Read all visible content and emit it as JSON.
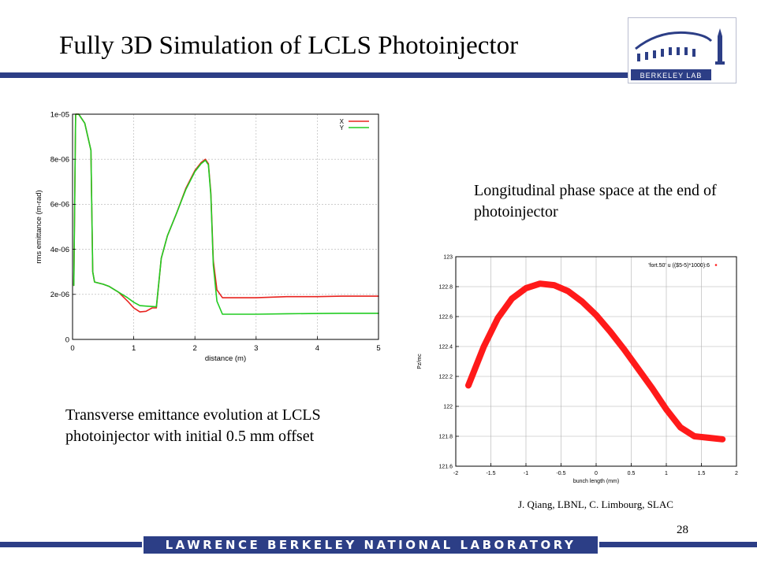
{
  "slide": {
    "title": "Fully 3D Simulation of LCLS Photoinjector",
    "caption_longitudinal": "Longitudinal phase space at the end of photoinjector",
    "caption_transverse": "Transverse emittance evolution at LCLS photoinjector with initial 0.5 mm offset",
    "credit": "J. Qiang, LBNL, C. Limbourg, SLAC",
    "page_number": "28",
    "footer": "LAWRENCE BERKELEY NATIONAL LABORATORY",
    "logo_text": "BERKELEY LAB",
    "colors": {
      "brand_blue": "#2c3e86"
    }
  },
  "chart_data": [
    {
      "type": "line",
      "xlabel": "distance (m)",
      "ylabel": "rms emittance (m-rad)",
      "xlim": [
        0,
        5
      ],
      "ylim": [
        0,
        1e-05
      ],
      "x_ticks": [
        "0",
        "1",
        "2",
        "3",
        "4",
        "5"
      ],
      "y_ticks": [
        "0",
        "2e-06",
        "4e-06",
        "6e-06",
        "8e-06",
        "1e-05"
      ],
      "grid": true,
      "legend_position": "top-right",
      "series": [
        {
          "name": "X",
          "color": "#e8231f",
          "points": [
            [
              0.02,
              2.4e-06
            ],
            [
              0.05,
              1e-05
            ],
            [
              0.1,
              1e-05
            ],
            [
              0.2,
              9.6e-06
            ],
            [
              0.3,
              8.4e-06
            ],
            [
              0.33,
              3e-06
            ],
            [
              0.36,
              2.55e-06
            ],
            [
              0.5,
              2.45e-06
            ],
            [
              0.6,
              2.35e-06
            ],
            [
              0.75,
              2.1e-06
            ],
            [
              0.9,
              1.7e-06
            ],
            [
              1.0,
              1.4e-06
            ],
            [
              1.1,
              1.22e-06
            ],
            [
              1.2,
              1.25e-06
            ],
            [
              1.3,
              1.4e-06
            ],
            [
              1.37,
              1.4e-06
            ],
            [
              1.45,
              3.6e-06
            ],
            [
              1.55,
              4.6e-06
            ],
            [
              1.7,
              5.6e-06
            ],
            [
              1.85,
              6.7e-06
            ],
            [
              2.0,
              7.5e-06
            ],
            [
              2.1,
              7.85e-06
            ],
            [
              2.17,
              8e-06
            ],
            [
              2.22,
              7.8e-06
            ],
            [
              2.26,
              6.5e-06
            ],
            [
              2.3,
              3.5e-06
            ],
            [
              2.36,
              2.2e-06
            ],
            [
              2.45,
              1.85e-06
            ],
            [
              3.0,
              1.85e-06
            ],
            [
              3.5,
              1.9e-06
            ],
            [
              4.0,
              1.9e-06
            ],
            [
              4.4,
              1.92e-06
            ],
            [
              5.0,
              1.92e-06
            ]
          ]
        },
        {
          "name": "Y",
          "color": "#22cc22",
          "points": [
            [
              0.02,
              2.4e-06
            ],
            [
              0.05,
              1e-05
            ],
            [
              0.1,
              1e-05
            ],
            [
              0.2,
              9.6e-06
            ],
            [
              0.3,
              8.4e-06
            ],
            [
              0.33,
              3e-06
            ],
            [
              0.36,
              2.55e-06
            ],
            [
              0.5,
              2.45e-06
            ],
            [
              0.6,
              2.35e-06
            ],
            [
              0.75,
              2.1e-06
            ],
            [
              0.9,
              1.85e-06
            ],
            [
              1.0,
              1.65e-06
            ],
            [
              1.1,
              1.5e-06
            ],
            [
              1.2,
              1.48e-06
            ],
            [
              1.3,
              1.46e-06
            ],
            [
              1.37,
              1.45e-06
            ],
            [
              1.45,
              3.6e-06
            ],
            [
              1.55,
              4.6e-06
            ],
            [
              1.7,
              5.6e-06
            ],
            [
              1.85,
              6.65e-06
            ],
            [
              2.0,
              7.45e-06
            ],
            [
              2.1,
              7.8e-06
            ],
            [
              2.17,
              7.95e-06
            ],
            [
              2.22,
              7.75e-06
            ],
            [
              2.26,
              6.4e-06
            ],
            [
              2.3,
              3.3e-06
            ],
            [
              2.36,
              1.7e-06
            ],
            [
              2.45,
              1.12e-06
            ],
            [
              3.0,
              1.12e-06
            ],
            [
              3.5,
              1.14e-06
            ],
            [
              4.0,
              1.15e-06
            ],
            [
              4.4,
              1.16e-06
            ],
            [
              5.0,
              1.16e-06
            ]
          ]
        }
      ]
    },
    {
      "type": "scatter",
      "xlabel": "bunch length (mm)",
      "ylabel": "Pz/mc",
      "xlim": [
        -2,
        2
      ],
      "ylim": [
        121.6,
        123
      ],
      "x_ticks": [
        "-2",
        "-1.5",
        "-1",
        "-0.5",
        "0",
        "0.5",
        "1",
        "1.5",
        "2"
      ],
      "y_ticks": [
        "121.6",
        "121.8",
        "122",
        "122.2",
        "122.4",
        "122.6",
        "122.8",
        "123"
      ],
      "grid": true,
      "legend_position": "top-right",
      "legend_text": "'fort.50' u (($5-5)*1000):6",
      "series": [
        {
          "color": "#ff1a1a",
          "points": [
            [
              -1.82,
              122.14
            ],
            [
              -1.6,
              122.4
            ],
            [
              -1.4,
              122.59
            ],
            [
              -1.2,
              122.72
            ],
            [
              -1.0,
              122.79
            ],
            [
              -0.8,
              122.82
            ],
            [
              -0.6,
              122.81
            ],
            [
              -0.4,
              122.77
            ],
            [
              -0.2,
              122.7
            ],
            [
              0.0,
              122.61
            ],
            [
              0.2,
              122.5
            ],
            [
              0.4,
              122.38
            ],
            [
              0.6,
              122.25
            ],
            [
              0.8,
              122.12
            ],
            [
              1.0,
              121.98
            ],
            [
              1.2,
              121.86
            ],
            [
              1.4,
              121.8
            ],
            [
              1.6,
              121.79
            ],
            [
              1.8,
              121.78
            ]
          ]
        }
      ]
    }
  ]
}
